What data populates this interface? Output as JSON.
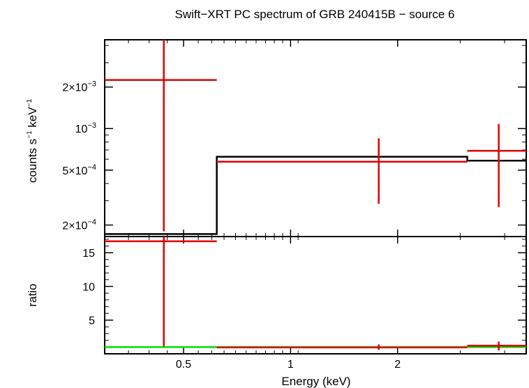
{
  "chart_data": {
    "type": "scatter",
    "title": "Swift−XRT PC spectrum of GRB 240415B − source 6",
    "xlabel": "Energy (keV)",
    "x_scale": "log",
    "xlim": [
      0.3,
      4.6
    ],
    "x_ticks": [
      {
        "value": 0.5,
        "label": "0.5"
      },
      {
        "value": 1,
        "label": "1"
      },
      {
        "value": 2,
        "label": "2"
      }
    ],
    "colors": {
      "data": "#e00000",
      "model": "#000000",
      "unity_line": "#00dd00",
      "axes": "#000000"
    },
    "panels": [
      {
        "name": "spectrum",
        "ylabel_parts": [
          "counts s",
          "−1",
          " keV",
          "−1"
        ],
        "y_scale": "log",
        "ylim": [
          0.000165,
          0.0044
        ],
        "y_ticks": [
          {
            "value": 0.0002,
            "mantissa": "2×10",
            "exp": "−4"
          },
          {
            "value": 0.0005,
            "mantissa": "5×10",
            "exp": "−4"
          },
          {
            "value": 0.001,
            "mantissa": "10",
            "exp": "−3"
          },
          {
            "value": 0.002,
            "mantissa": "2×10",
            "exp": "−3"
          }
        ],
        "data": [
          {
            "x_lo": 0.3,
            "x_hi": 0.62,
            "x": 0.44,
            "y": 0.00225,
            "y_lo": 0.00018,
            "y_hi": 0.0044
          },
          {
            "x_lo": 0.62,
            "x_hi": 3.14,
            "x": 1.77,
            "y": 0.000575,
            "y_lo": 0.000285,
            "y_hi": 0.00085
          },
          {
            "x_lo": 3.14,
            "x_hi": 4.6,
            "x": 3.85,
            "y": 0.00069,
            "y_lo": 0.00027,
            "y_hi": 0.00108
          }
        ],
        "model": [
          {
            "x_lo": 0.3,
            "x_hi": 0.62,
            "y": 0.000172
          },
          {
            "x_lo": 0.62,
            "x_hi": 3.14,
            "y": 0.000625
          },
          {
            "x_lo": 3.14,
            "x_hi": 4.6,
            "y": 0.000585
          }
        ]
      },
      {
        "name": "ratio",
        "ylabel": "ratio",
        "y_scale": "linear",
        "ylim": [
          0,
          17.4
        ],
        "y_ticks": [
          {
            "value": 5,
            "label": "5"
          },
          {
            "value": 10,
            "label": "10"
          },
          {
            "value": 15,
            "label": "15"
          }
        ],
        "unity": 1,
        "data": [
          {
            "x_lo": 0.3,
            "x_hi": 0.62,
            "x": 0.44,
            "y": 16.7,
            "y_lo": 1.1,
            "y_hi": 17.4
          },
          {
            "x_lo": 0.62,
            "x_hi": 3.14,
            "x": 1.77,
            "y": 0.95,
            "y_lo": 0.6,
            "y_hi": 1.4
          },
          {
            "x_lo": 3.14,
            "x_hi": 4.6,
            "x": 3.85,
            "y": 1.2,
            "y_lo": 0.5,
            "y_hi": 1.8
          }
        ]
      }
    ]
  }
}
